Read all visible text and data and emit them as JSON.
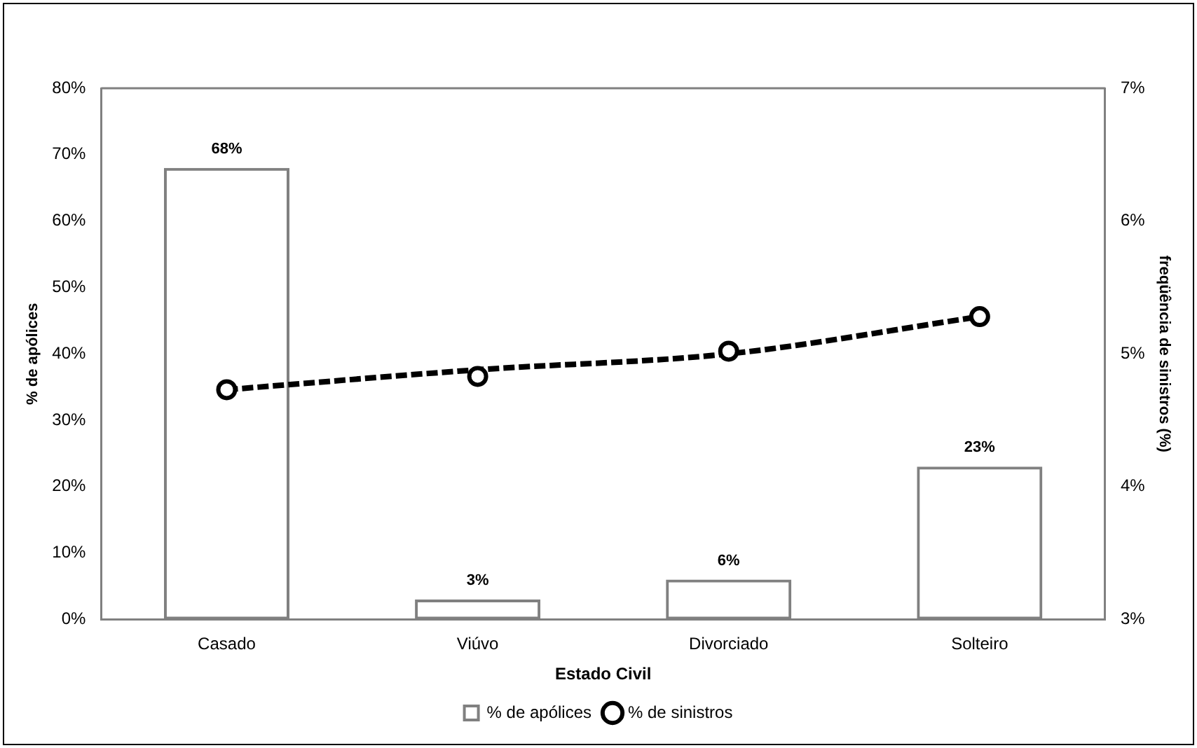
{
  "chart_data": {
    "type": "bar",
    "xlabel": "Estado Civil",
    "ylabel": "% de apólices",
    "y2label": "freqüência de sinistros (%)",
    "categories": [
      "Casado",
      "Viúvo",
      "Divorciado",
      "Solteiro"
    ],
    "series": [
      {
        "name": "% de apólices",
        "color": "#808080",
        "values": [
          68,
          3,
          6,
          23
        ],
        "value_labels": [
          "68%",
          "3%",
          "6%",
          "23%"
        ]
      },
      {
        "name": "% de sinistros",
        "type": "scatter",
        "axis": "y2",
        "color": "#000000",
        "marker": "circle",
        "values": [
          4.73,
          4.83,
          5.02,
          5.28
        ]
      },
      {
        "type": "line",
        "axis": "y2",
        "color": "#000000",
        "line_style": "dashed",
        "values": [
          4.73,
          4.88,
          5.0,
          5.28
        ]
      }
    ],
    "ylim": [
      0,
      80
    ],
    "yticks": [
      {
        "value": 0,
        "label": "0%"
      },
      {
        "value": 10,
        "label": "10%"
      },
      {
        "value": 20,
        "label": "20%"
      },
      {
        "value": 30,
        "label": "30%"
      },
      {
        "value": 40,
        "label": "40%"
      },
      {
        "value": 50,
        "label": "50%"
      },
      {
        "value": 60,
        "label": "60%"
      },
      {
        "value": 70,
        "label": "70%"
      },
      {
        "value": 80,
        "label": "80%"
      }
    ],
    "y2lim": [
      3,
      7
    ],
    "y2ticks": [
      {
        "value": 3,
        "label": "3%"
      },
      {
        "value": 4,
        "label": "4%"
      },
      {
        "value": 5,
        "label": "5%"
      },
      {
        "value": 6,
        "label": "6%"
      },
      {
        "value": 7,
        "label": "7%"
      }
    ],
    "grid": false,
    "legend": "bottom"
  }
}
